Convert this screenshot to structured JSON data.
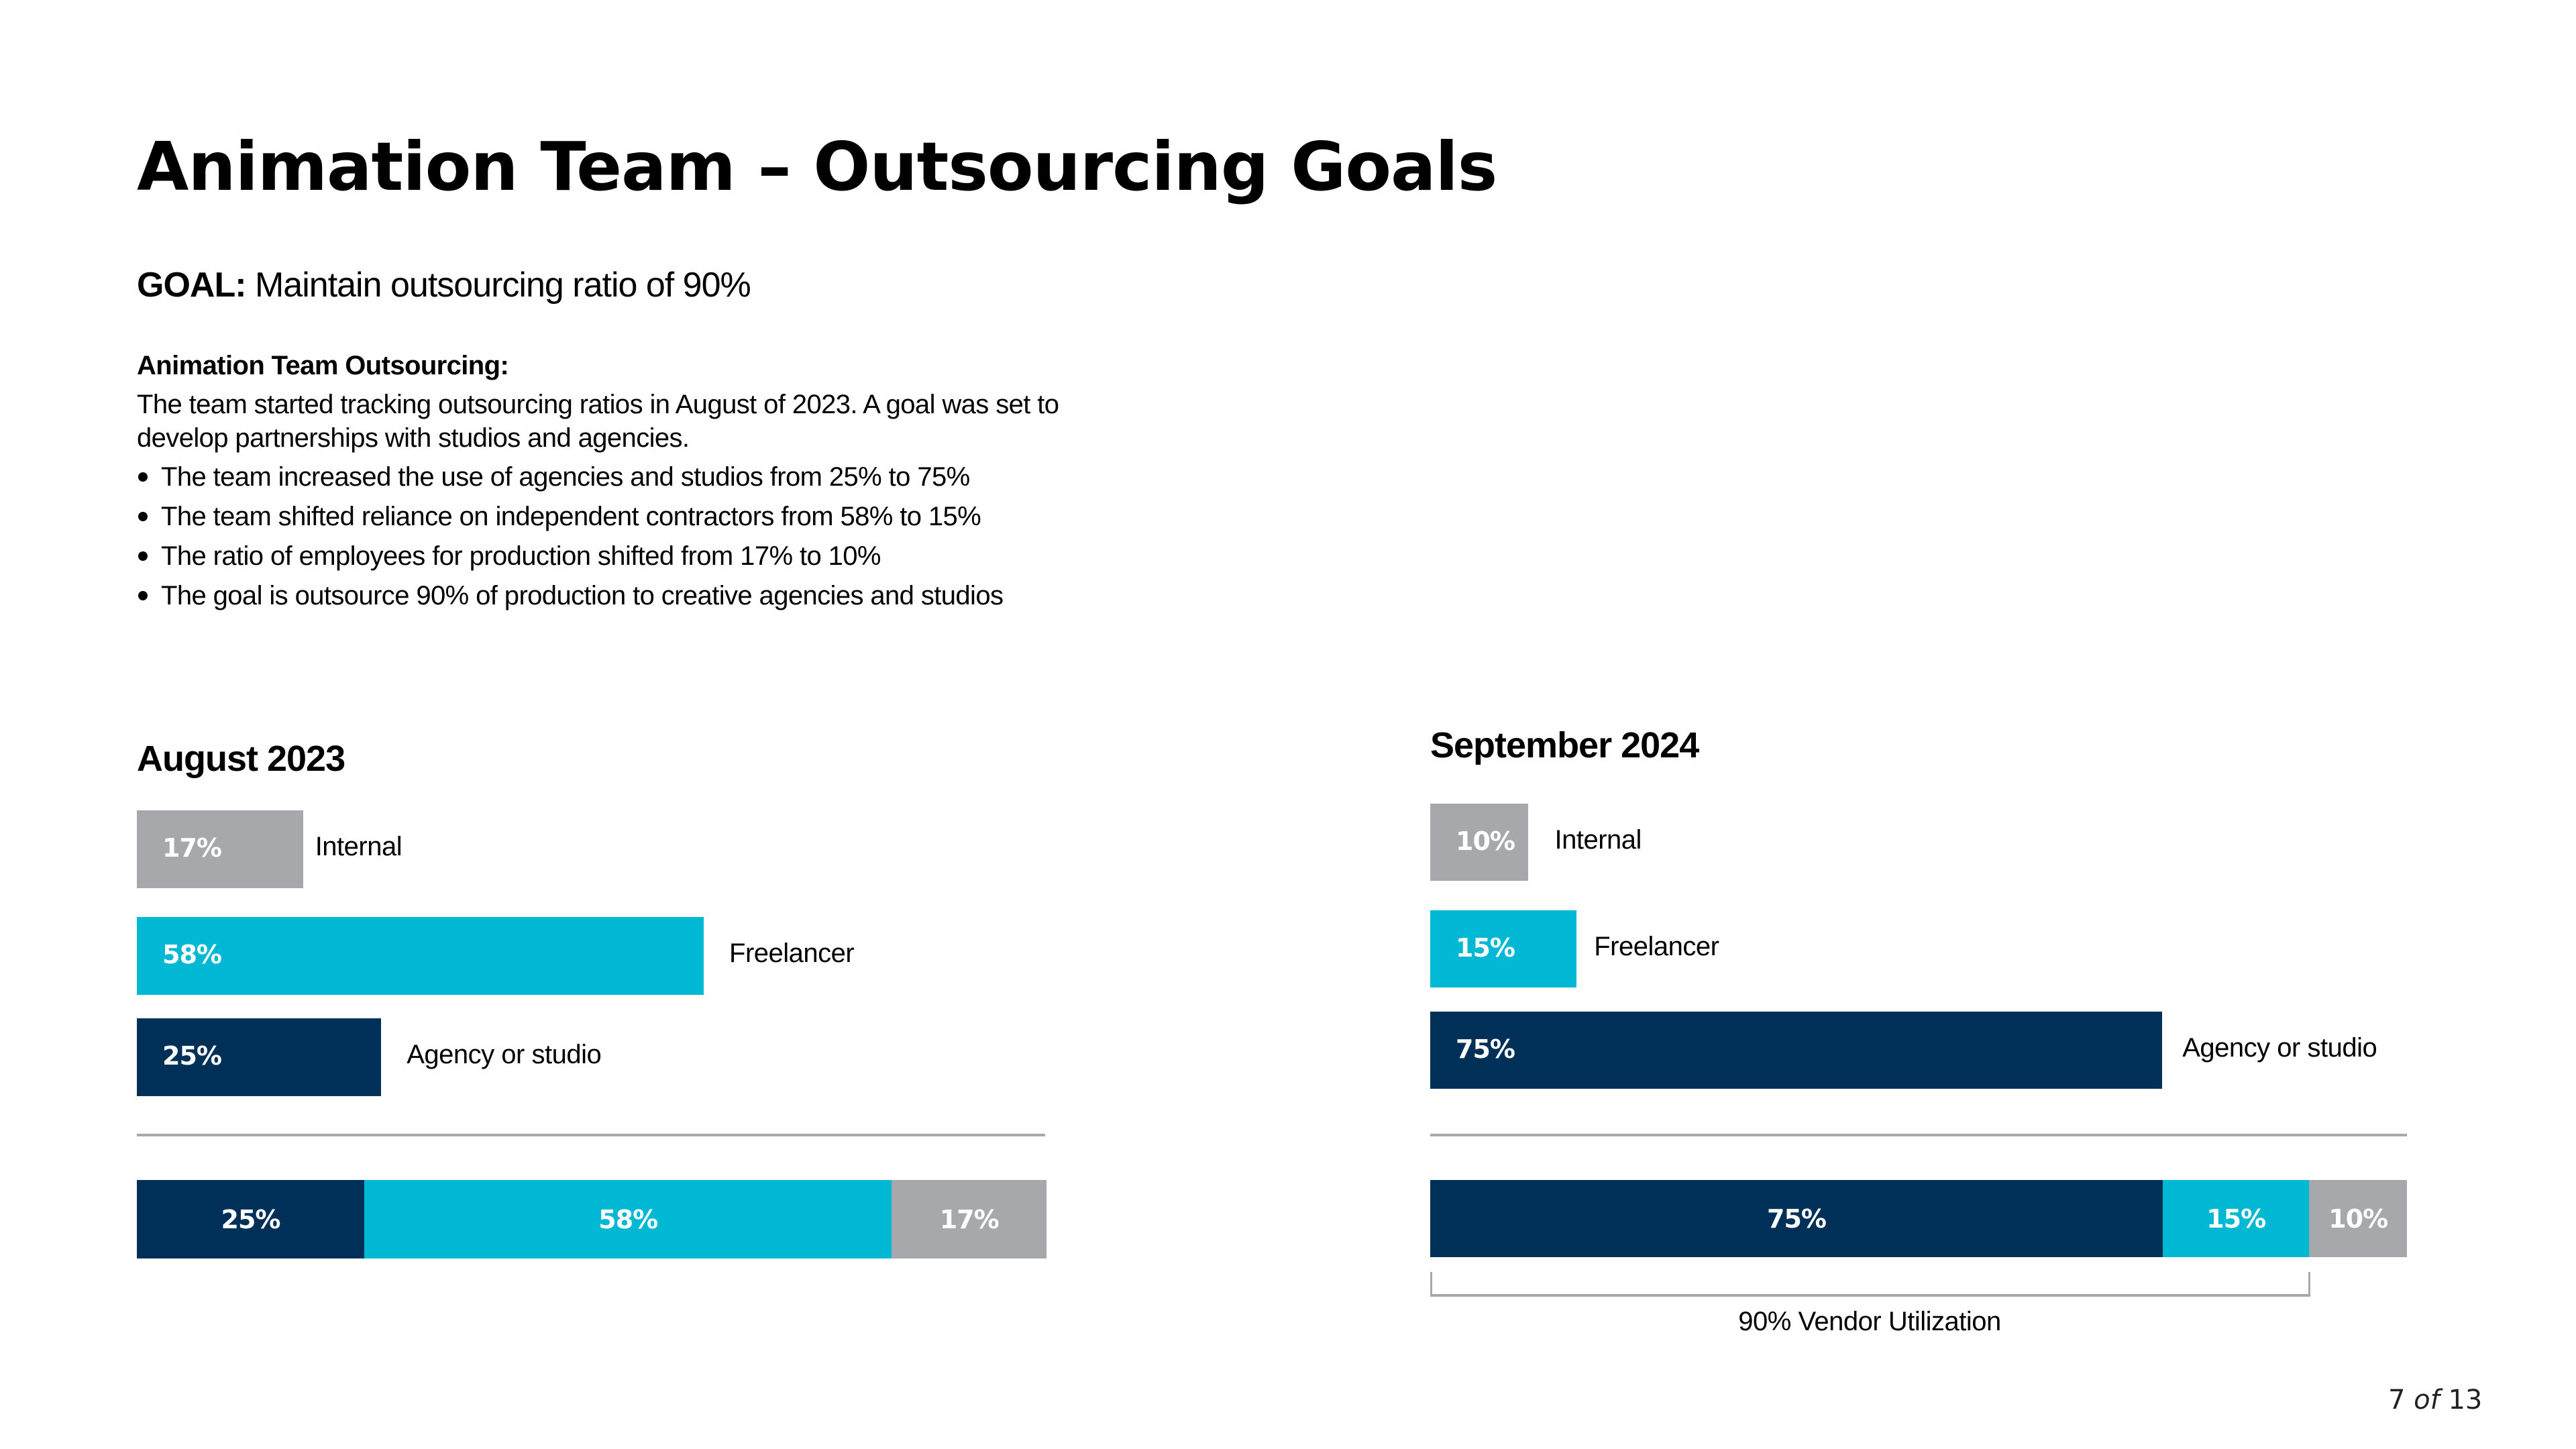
{
  "title": "Animation Team – Outsourcing Goals",
  "goal": {
    "label": "GOAL:",
    "text": "Maintain outsourcing ratio of 90%"
  },
  "summary": {
    "heading": "Animation Team Outsourcing:",
    "paragraph": "The team started tracking outsourcing ratios in August of 2023. A goal was set to develop partnerships with studios and agencies.",
    "bullets": [
      "The team increased the use of agencies and studios from 25% to 75%",
      "The team shifted reliance on independent contractors from 58% to 15%",
      "The ratio of employees for production shifted from 17% to 10%",
      "The goal is outsource 90% of production to creative agencies and studios"
    ]
  },
  "colors": {
    "internal": "#A7A8AC",
    "freelancer": "#00B8D4",
    "agency": "#003057",
    "divider": "#A7A8AC"
  },
  "chart_data": [
    {
      "type": "bar",
      "orientation": "horizontal",
      "title": "August 2023",
      "categories": [
        "Internal",
        "Freelancer",
        "Agency or studio"
      ],
      "values": [
        17,
        58,
        25
      ],
      "value_labels": [
        "17%",
        "58%",
        "25%"
      ],
      "unit": "%",
      "stacked_bar": {
        "order": [
          "Agency or studio",
          "Freelancer",
          "Internal"
        ],
        "values": [
          25,
          58,
          17
        ],
        "labels": [
          "25%",
          "58%",
          "17%"
        ]
      }
    },
    {
      "type": "bar",
      "orientation": "horizontal",
      "title": "September 2024",
      "categories": [
        "Internal",
        "Freelancer",
        "Agency or studio"
      ],
      "values": [
        10,
        15,
        75
      ],
      "value_labels": [
        "10%",
        "15%",
        "75%"
      ],
      "unit": "%",
      "stacked_bar": {
        "order": [
          "Agency or studio",
          "Freelancer",
          "Internal"
        ],
        "values": [
          75,
          15,
          10
        ],
        "labels": [
          "75%",
          "15%",
          "10%"
        ]
      },
      "annotation": {
        "text": "90% Vendor Utilization",
        "spans": [
          "Agency or studio",
          "Freelancer"
        ],
        "value": 90
      }
    }
  ],
  "page": {
    "current": "7",
    "of": "of",
    "total": "13"
  }
}
